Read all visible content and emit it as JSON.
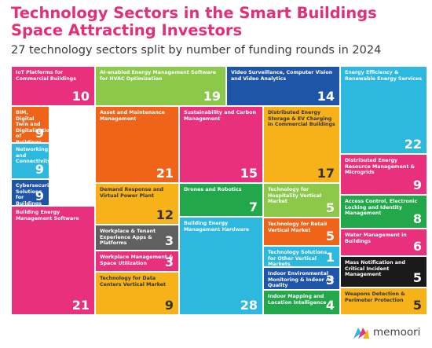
{
  "header": {
    "title": "Technology Sectors in the Smart Buildings Space Attracting Investors",
    "subtitle": "27 technology sectors split by number of funding rounds in 2024"
  },
  "logo": {
    "text": "memoori",
    "icon": "memoori-logo-icon"
  },
  "chart_data": {
    "type": "treemap",
    "title": "Technology Sectors in the Smart Buildings Space Attracting Investors",
    "subtitle": "27 technology sectors split by number of funding rounds in 2024",
    "items": [
      {
        "label": "IoT Platforms for Commercial Buildings",
        "value": 10,
        "color": "#e8307c",
        "text_color": "#ffffff"
      },
      {
        "label": "BIM, Digital Twin and Digitalization of Buildings",
        "value": 9,
        "color": "#f0641a",
        "text_color": "#ffffff"
      },
      {
        "label": "Networking and Connectivity",
        "value": 9,
        "color": "#2db8e0",
        "text_color": "#ffffff"
      },
      {
        "label": "Cybersecurity Solutions for Buildings",
        "value": 9,
        "color": "#1e55a8",
        "text_color": "#ffffff"
      },
      {
        "label": "Building Energy Management Software",
        "value": 21,
        "color": "#e8307c",
        "text_color": "#ffffff"
      },
      {
        "label": "AI-enabled Energy Management Software for HVAC Optimization",
        "value": 19,
        "color": "#8cc94a",
        "text_color": "#ffffff"
      },
      {
        "label": "Asset and Maintenance Management",
        "value": 21,
        "color": "#f0641a",
        "text_color": "#ffffff"
      },
      {
        "label": "Demand Response and Virtual Power Plant",
        "value": 12,
        "color": "#f7b21a",
        "text_color": "#333333"
      },
      {
        "label": "Workplace & Tenant Experience Apps & Platforms",
        "value": 3,
        "color": "#606060",
        "text_color": "#ffffff"
      },
      {
        "label": "Workplace Management & Space Utilization",
        "value": 3,
        "color": "#e8307c",
        "text_color": "#ffffff"
      },
      {
        "label": "Technology for Data Centers Vertical Market",
        "value": 9,
        "color": "#f7b21a",
        "text_color": "#333333"
      },
      {
        "label": "Video Surveillance, Computer Vision and Video Analytics",
        "value": 14,
        "color": "#1e55a8",
        "text_color": "#ffffff"
      },
      {
        "label": "Sustainability and Carbon Management",
        "value": 15,
        "color": "#e8307c",
        "text_color": "#ffffff"
      },
      {
        "label": "Drones and Robotics",
        "value": 7,
        "color": "#22a84a",
        "text_color": "#ffffff"
      },
      {
        "label": "Building Energy Management Hardware",
        "value": 28,
        "color": "#2db8e0",
        "text_color": "#ffffff"
      },
      {
        "label": "Distributed Energy Storage & EV Charging in Commercial Buildings",
        "value": 17,
        "color": "#f7b21a",
        "text_color": "#333333"
      },
      {
        "label": "Technology for Hospitality Vertical Market",
        "value": 5,
        "color": "#8cc94a",
        "text_color": "#ffffff"
      },
      {
        "label": "Technology for Retail Vertical Market",
        "value": 5,
        "color": "#f0641a",
        "text_color": "#ffffff"
      },
      {
        "label": "Technology Solutions for Other Vertical Markets",
        "value": 1,
        "color": "#2db8e0",
        "text_color": "#ffffff"
      },
      {
        "label": "Indoor Environmental Monitoring & Indoor Air Quality",
        "value": 3,
        "color": "#1e55a8",
        "text_color": "#ffffff"
      },
      {
        "label": "Indoor Mapping and Location Intelligence",
        "value": 4,
        "color": "#22a84a",
        "text_color": "#ffffff"
      },
      {
        "label": "Energy Efficiency & Renewable Energy Services",
        "value": 22,
        "color": "#2db8e0",
        "text_color": "#ffffff"
      },
      {
        "label": "Distributed Energy Resource Management & Microgrids",
        "value": 9,
        "color": "#e8307c",
        "text_color": "#ffffff"
      },
      {
        "label": "Access Control, Electronic Locking and Identity Management",
        "value": 8,
        "color": "#22a84a",
        "text_color": "#ffffff"
      },
      {
        "label": "Water Management in Buildings",
        "value": 6,
        "color": "#e8307c",
        "text_color": "#ffffff"
      },
      {
        "label": "Mass Notification and Critical Incident Management",
        "value": 5,
        "color": "#1a1a1a",
        "text_color": "#ffffff"
      },
      {
        "label": "Weapons Detection & Perimeter Protection",
        "value": 5,
        "color": "#f7b21a",
        "text_color": "#333333"
      }
    ]
  }
}
